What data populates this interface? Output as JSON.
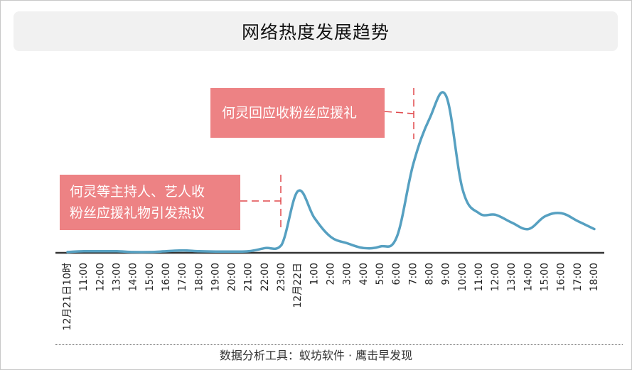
{
  "header": {
    "title": "网络热度发展趋势"
  },
  "annotations": [
    {
      "lines": [
        "何灵等主持人、艺人收",
        "粉丝应援礼物引发热议"
      ]
    },
    {
      "lines": [
        "何灵回应收粉丝应援礼"
      ]
    }
  ],
  "footer": {
    "text": "数据分析工具：蚁坊软件 · 鹰击早发现"
  },
  "colors": {
    "line": "#56a0c1",
    "annotation_bg": "#ed8284",
    "annotation_dash": "#e0484c",
    "axis": "#333333"
  },
  "chart_data": {
    "type": "line",
    "title": "网络热度发展趋势",
    "xlabel": "",
    "ylabel": "",
    "grid": false,
    "categories": [
      "12月21日10时",
      "11:00",
      "12:00",
      "13:00",
      "14:00",
      "15:00",
      "16:00",
      "17:00",
      "18:00",
      "19:00",
      "20:00",
      "21:00",
      "22:00",
      "23:00",
      "12月22日",
      "1:00",
      "2:00",
      "3:00",
      "4:00",
      "5:00",
      "6:00",
      "7:00",
      "8:00",
      "9:00",
      "10:00",
      "11:00",
      "12:00",
      "13:00",
      "14:00",
      "15:00",
      "16:00",
      "17:00",
      "18:00"
    ],
    "values": [
      0.5,
      1,
      1,
      1,
      0.5,
      0.5,
      1,
      1.5,
      1,
      0.8,
      0.8,
      1,
      3,
      5,
      39,
      22,
      10,
      6,
      3,
      4,
      10,
      56,
      85,
      99,
      40,
      25,
      24,
      19,
      15,
      23,
      25,
      20,
      15
    ],
    "ylim": [
      0,
      100
    ]
  }
}
